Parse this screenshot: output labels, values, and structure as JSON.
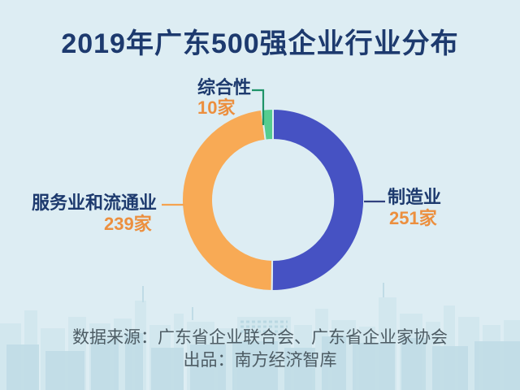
{
  "title": "2019年广东500强企业行业分布",
  "colors": {
    "background": "#ddedf3",
    "title_text": "#1d3a6e",
    "label_text": "#1d3a6e",
    "value_text": "#ec8f3e",
    "footer_text": "#4d5c64",
    "skyline_back": "#d0e5ec",
    "skyline_front": "#c0dce6"
  },
  "chart_data": {
    "type": "pie",
    "donut": true,
    "title": "2019年广东500强企业行业分布",
    "total": 500,
    "unit": "家",
    "start_angle_deg": 0,
    "clockwise": true,
    "legend_position": "callout-labels",
    "segments": [
      {
        "label": "制造业",
        "value": 251,
        "value_label": "251家",
        "color": "#4652c3",
        "leader_color": "#31417f"
      },
      {
        "label": "服务业和流通业",
        "value": 239,
        "value_label": "239家",
        "color": "#f8aa55",
        "leader_color": "#f5a34f"
      },
      {
        "label": "综合性",
        "value": 10,
        "value_label": "10家",
        "color": "#55cd8f",
        "leader_color": "#1f9469"
      }
    ]
  },
  "footer": {
    "source_line": "数据来源：广东省企业联合会、广东省企业家协会",
    "producer_line": "出品：南方经济智库"
  }
}
